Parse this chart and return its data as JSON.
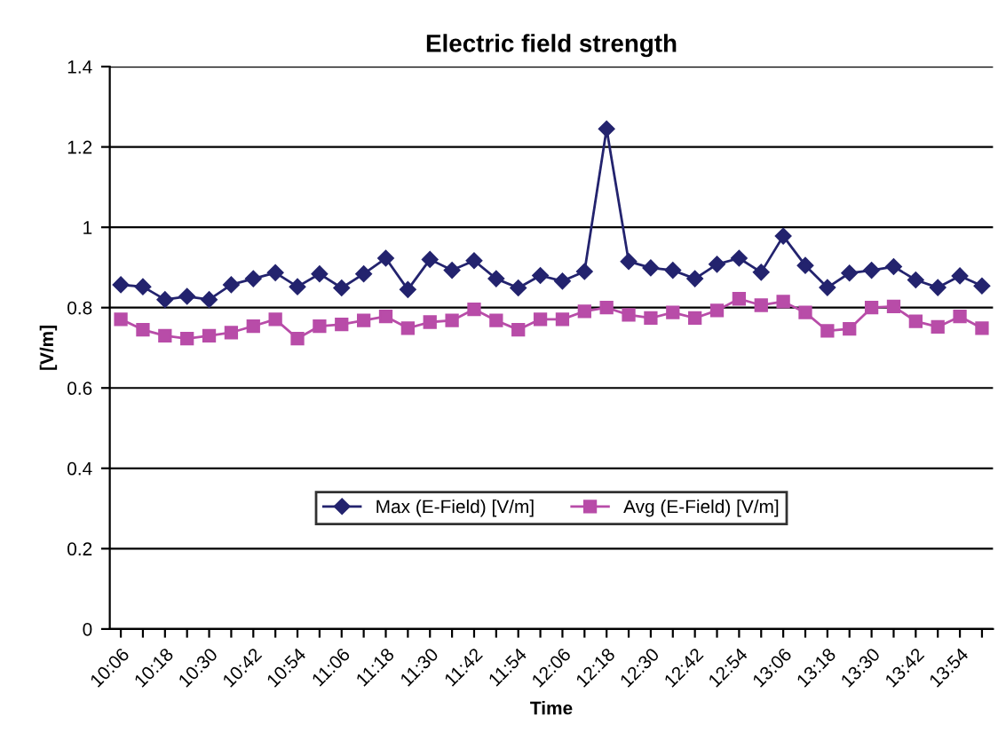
{
  "chart_data": {
    "type": "line",
    "title": "Electric field strength",
    "xlabel": "Time",
    "ylabel": "[V/m]",
    "categories": [
      "10:06",
      null,
      "10:18",
      null,
      "10:30",
      null,
      "10:42",
      null,
      "10:54",
      null,
      "11:06",
      null,
      "11:18",
      null,
      "11:30",
      null,
      "11:42",
      null,
      "11:54",
      null,
      "12:06",
      null,
      "12:18",
      null,
      "12:30",
      null,
      "12:42",
      null,
      "12:54",
      null,
      "13:06",
      null,
      "13:18",
      null,
      "13:30",
      null,
      "13:42",
      null,
      "13:54",
      null
    ],
    "series": [
      {
        "name": "Max (E-Field) [V/m]",
        "color": "#23236e",
        "marker": "diamond",
        "values": [
          0.857,
          0.852,
          0.82,
          0.828,
          0.82,
          0.857,
          0.872,
          0.887,
          0.852,
          0.884,
          0.849,
          0.884,
          0.923,
          0.845,
          0.92,
          0.893,
          0.917,
          0.872,
          0.849,
          0.88,
          0.866,
          0.89,
          1.245,
          0.915,
          0.899,
          0.893,
          0.872,
          0.908,
          0.923,
          0.888,
          0.978,
          0.905,
          0.85,
          0.886,
          0.893,
          0.902,
          0.869,
          0.85,
          0.879,
          0.854
        ]
      },
      {
        "name": "Avg (E-Field) [V/m]",
        "color": "#b84ca8",
        "marker": "square",
        "values": [
          0.771,
          0.745,
          0.73,
          0.723,
          0.73,
          0.738,
          0.754,
          0.771,
          0.723,
          0.754,
          0.758,
          0.768,
          0.778,
          0.749,
          0.764,
          0.768,
          0.796,
          0.768,
          0.745,
          0.771,
          0.771,
          0.791,
          0.8,
          0.782,
          0.774,
          0.788,
          0.774,
          0.793,
          0.822,
          0.806,
          0.815,
          0.788,
          0.742,
          0.747,
          0.8,
          0.803,
          0.766,
          0.752,
          0.778,
          0.749
        ]
      }
    ],
    "ylim": [
      0,
      1.4
    ],
    "yticks": [
      0,
      0.2,
      0.4,
      0.6,
      0.8,
      1,
      1.2,
      1.4
    ],
    "grid": "y",
    "legend": "bottom",
    "line_style": "solid"
  }
}
